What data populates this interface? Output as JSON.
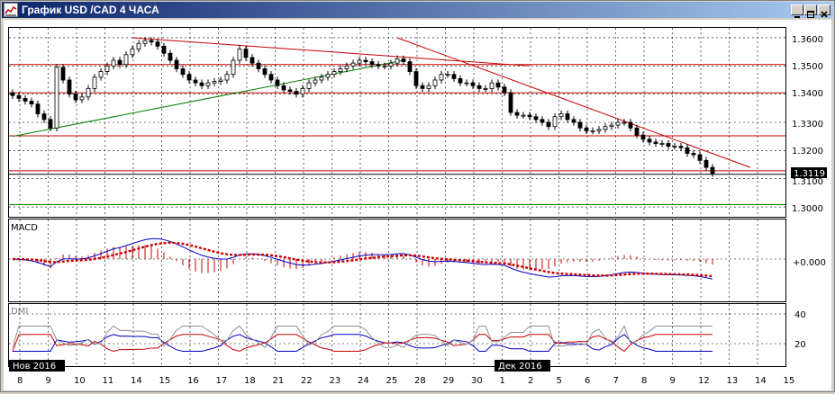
{
  "window": {
    "title": "График USD /CAD  4 ЧАСА",
    "controls": [
      "minimize",
      "maximize",
      "close"
    ]
  },
  "colors": {
    "candle": "#000000",
    "trend_up": "#008000",
    "trend_down": "#c80000",
    "level_line": "#c80000",
    "support_line": "#008000",
    "macd_line": "#0000c8",
    "macd_signal": "#c80000",
    "dmi_plus": "#0000c8",
    "dmi_minus": "#c80000",
    "adx": "#909090"
  },
  "price_panel": {
    "y_ticks": [
      "1.3600",
      "1.3500",
      "1.3400",
      "1.3300",
      "1.3200",
      "1.3100",
      "1.3000"
    ],
    "current_price": "1.3119"
  },
  "macd_panel": {
    "label": "MACD",
    "y_tick": "+0.000"
  },
  "dmi_panel": {
    "label": "DMI",
    "y_ticks": [
      "40",
      "20"
    ]
  },
  "x_axis": {
    "ticks": [
      "8",
      "9",
      "10",
      "11",
      "14",
      "15",
      "16",
      "17",
      "18",
      "21",
      "22",
      "23",
      "24",
      "25",
      "28",
      "29",
      "30",
      "1",
      "2",
      "5",
      "6",
      "7",
      "8",
      "9",
      "12",
      "13",
      "14",
      "15"
    ],
    "month_labels": [
      "Нов 2016",
      "Дек 2016"
    ]
  },
  "chart_data": {
    "type": "candlestick",
    "y_axis_range": [
      1.2965,
      1.3635
    ],
    "horizontal_levels": [
      1.3505,
      1.3405,
      1.3252,
      1.3128,
      1.3008
    ],
    "series": {
      "close": [
        1.3395,
        1.3385,
        1.3375,
        1.3365,
        1.333,
        1.331,
        1.328,
        1.3495,
        1.345,
        1.34,
        1.338,
        1.339,
        1.342,
        1.346,
        1.348,
        1.35,
        1.352,
        1.3505,
        1.354,
        1.356,
        1.358,
        1.359,
        1.3585,
        1.357,
        1.3545,
        1.352,
        1.349,
        1.347,
        1.345,
        1.344,
        1.343,
        1.344,
        1.3445,
        1.345,
        1.347,
        1.352,
        1.356,
        1.353,
        1.351,
        1.349,
        1.347,
        1.345,
        1.343,
        1.3415,
        1.341,
        1.34,
        1.342,
        1.344,
        1.345,
        1.346,
        1.347,
        1.348,
        1.349,
        1.35,
        1.351,
        1.352,
        1.3515,
        1.3505,
        1.35,
        1.35,
        1.351,
        1.3525,
        1.3515,
        1.348,
        1.343,
        1.342,
        1.343,
        1.345,
        1.347,
        1.347,
        1.3455,
        1.344,
        1.344,
        1.343,
        1.342,
        1.342,
        1.344,
        1.3425,
        1.3405,
        1.3335,
        1.3325,
        1.3325,
        1.332,
        1.331,
        1.33,
        1.3285,
        1.332,
        1.333,
        1.331,
        1.33,
        1.328,
        1.327,
        1.327,
        1.3275,
        1.3285,
        1.329,
        1.33,
        1.33,
        1.328,
        1.3255,
        1.324,
        1.323,
        1.3225,
        1.3225,
        1.3215,
        1.3215,
        1.321,
        1.319,
        1.3185,
        1.3165,
        1.314,
        1.3119
      ]
    }
  }
}
